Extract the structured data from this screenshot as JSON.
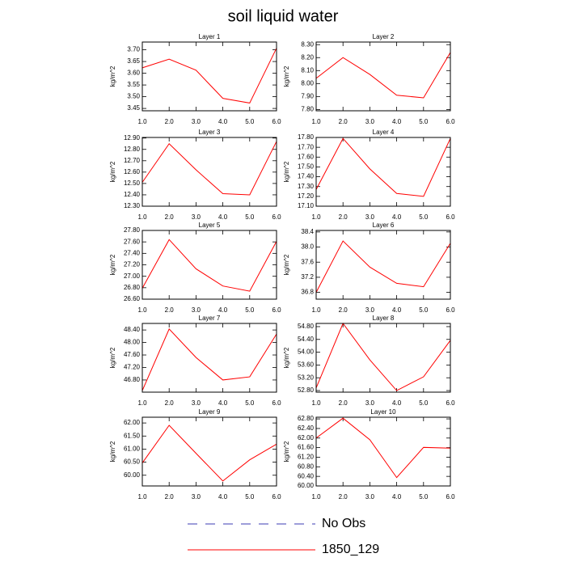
{
  "title": "soil liquid water",
  "legend": [
    {
      "name": "No Obs",
      "color": "#3b3bb3",
      "dash": true
    },
    {
      "name": "1850_129",
      "color": "#ff0000",
      "dash": false
    }
  ],
  "chart_data": [
    {
      "type": "line",
      "title": "Layer 1",
      "ylabel": "kg/m^2",
      "x": [
        1,
        2,
        3,
        4,
        5,
        6
      ],
      "series": [
        {
          "color": "#ff0000",
          "values": [
            3.623,
            3.66,
            3.613,
            3.493,
            3.473,
            3.707
          ]
        }
      ],
      "xlim": [
        1,
        6
      ],
      "xticks": [
        {
          "value": 1,
          "label": "1.0"
        },
        {
          "value": 2,
          "label": "2.0"
        },
        {
          "value": 3,
          "label": "3.0"
        },
        {
          "value": 4,
          "label": "4.0"
        },
        {
          "value": 5,
          "label": "5.0"
        },
        {
          "value": 6,
          "label": "6.0"
        }
      ],
      "ylim": [
        3.44,
        3.733
      ],
      "yticks": [
        {
          "value": 3.45,
          "label": "3.45"
        },
        {
          "value": 3.5,
          "label": "3.50"
        },
        {
          "value": 3.55,
          "label": "3.55"
        },
        {
          "value": 3.6,
          "label": "3.60"
        },
        {
          "value": 3.65,
          "label": "3.65"
        },
        {
          "value": 3.7,
          "label": "3.70"
        }
      ]
    },
    {
      "type": "line",
      "title": "Layer 2",
      "ylabel": "kg/m^2",
      "x": [
        1,
        2,
        3,
        4,
        5,
        6
      ],
      "series": [
        {
          "color": "#ff0000",
          "values": [
            8.04,
            8.2,
            8.07,
            7.91,
            7.89,
            8.24
          ]
        }
      ],
      "xlim": [
        1,
        6
      ],
      "xticks": [
        {
          "value": 1,
          "label": "1.0"
        },
        {
          "value": 2,
          "label": "2.0"
        },
        {
          "value": 3,
          "label": "3.0"
        },
        {
          "value": 4,
          "label": "4.0"
        },
        {
          "value": 5,
          "label": "5.0"
        },
        {
          "value": 6,
          "label": "6.0"
        }
      ],
      "ylim": [
        7.79,
        8.32
      ],
      "yticks": [
        {
          "value": 7.8,
          "label": "7.80"
        },
        {
          "value": 7.9,
          "label": "7.90"
        },
        {
          "value": 8.0,
          "label": "8.00"
        },
        {
          "value": 8.1,
          "label": "8.10"
        },
        {
          "value": 8.2,
          "label": "8.20"
        },
        {
          "value": 8.3,
          "label": "8.30"
        }
      ]
    },
    {
      "type": "line",
      "title": "Layer 3",
      "ylabel": "kg/m^2",
      "x": [
        1,
        2,
        3,
        4,
        5,
        6
      ],
      "series": [
        {
          "color": "#ff0000",
          "values": [
            12.51,
            12.85,
            12.62,
            12.41,
            12.4,
            12.87
          ]
        }
      ],
      "xlim": [
        1,
        6
      ],
      "xticks": [
        {
          "value": 1,
          "label": "1.0"
        },
        {
          "value": 2,
          "label": "2.0"
        },
        {
          "value": 3,
          "label": "3.0"
        },
        {
          "value": 4,
          "label": "4.0"
        },
        {
          "value": 5,
          "label": "5.0"
        },
        {
          "value": 6,
          "label": "6.0"
        }
      ],
      "ylim": [
        12.3,
        12.905
      ],
      "yticks": [
        {
          "value": 12.3,
          "label": "12.30"
        },
        {
          "value": 12.4,
          "label": "12.40"
        },
        {
          "value": 12.5,
          "label": "12.50"
        },
        {
          "value": 12.6,
          "label": "12.60"
        },
        {
          "value": 12.7,
          "label": "12.70"
        },
        {
          "value": 12.8,
          "label": "12.80"
        },
        {
          "value": 12.9,
          "label": "12.90"
        }
      ]
    },
    {
      "type": "line",
      "title": "Layer 4",
      "ylabel": "kg/m^2",
      "x": [
        1,
        2,
        3,
        4,
        5,
        6
      ],
      "series": [
        {
          "color": "#ff0000",
          "values": [
            17.27,
            17.79,
            17.48,
            17.23,
            17.2,
            17.79
          ]
        }
      ],
      "xlim": [
        1,
        6
      ],
      "xticks": [
        {
          "value": 1,
          "label": "1.0"
        },
        {
          "value": 2,
          "label": "2.0"
        },
        {
          "value": 3,
          "label": "3.0"
        },
        {
          "value": 4,
          "label": "4.0"
        },
        {
          "value": 5,
          "label": "5.0"
        },
        {
          "value": 6,
          "label": "6.0"
        }
      ],
      "ylim": [
        17.1,
        17.8
      ],
      "yticks": [
        {
          "value": 17.1,
          "label": "17.10"
        },
        {
          "value": 17.2,
          "label": "17.20"
        },
        {
          "value": 17.3,
          "label": "17.30"
        },
        {
          "value": 17.4,
          "label": "17.40"
        },
        {
          "value": 17.5,
          "label": "17.50"
        },
        {
          "value": 17.6,
          "label": "17.60"
        },
        {
          "value": 17.7,
          "label": "17.70"
        },
        {
          "value": 17.8,
          "label": "17.80"
        }
      ]
    },
    {
      "type": "line",
      "title": "Layer 5",
      "ylabel": "kg/m^2",
      "x": [
        1,
        2,
        3,
        4,
        5,
        6
      ],
      "series": [
        {
          "color": "#ff0000",
          "values": [
            26.79,
            27.64,
            27.13,
            26.83,
            26.74,
            27.61
          ]
        }
      ],
      "xlim": [
        1,
        6
      ],
      "xticks": [
        {
          "value": 1,
          "label": "1.0"
        },
        {
          "value": 2,
          "label": "2.0"
        },
        {
          "value": 3,
          "label": "3.0"
        },
        {
          "value": 4,
          "label": "4.0"
        },
        {
          "value": 5,
          "label": "5.0"
        },
        {
          "value": 6,
          "label": "6.0"
        }
      ],
      "ylim": [
        26.6,
        27.8
      ],
      "yticks": [
        {
          "value": 26.6,
          "label": "26.60"
        },
        {
          "value": 26.8,
          "label": "26.80"
        },
        {
          "value": 27.0,
          "label": "27.00"
        },
        {
          "value": 27.2,
          "label": "27.20"
        },
        {
          "value": 27.4,
          "label": "27.40"
        },
        {
          "value": 27.6,
          "label": "27.60"
        },
        {
          "value": 27.8,
          "label": "27.80"
        }
      ]
    },
    {
      "type": "line",
      "title": "Layer 6",
      "ylabel": "kg/m^2",
      "x": [
        1,
        2,
        3,
        4,
        5,
        6
      ],
      "series": [
        {
          "color": "#ff0000",
          "values": [
            36.8,
            38.16,
            37.47,
            37.04,
            36.95,
            38.1
          ]
        }
      ],
      "xlim": [
        1,
        6
      ],
      "xticks": [
        {
          "value": 1,
          "label": "1.0"
        },
        {
          "value": 2,
          "label": "2.0"
        },
        {
          "value": 3,
          "label": "3.0"
        },
        {
          "value": 4,
          "label": "4.0"
        },
        {
          "value": 5,
          "label": "5.0"
        },
        {
          "value": 6,
          "label": "6.0"
        }
      ],
      "ylim": [
        36.62,
        38.44
      ],
      "yticks": [
        {
          "value": 36.8,
          "label": "36.8"
        },
        {
          "value": 37.2,
          "label": "37.2"
        },
        {
          "value": 37.6,
          "label": "37.6"
        },
        {
          "value": 38.0,
          "label": "38.0"
        },
        {
          "value": 38.4,
          "label": "38.4"
        }
      ]
    },
    {
      "type": "line",
      "title": "Layer 7",
      "ylabel": "kg/m^2",
      "x": [
        1,
        2,
        3,
        4,
        5,
        6
      ],
      "series": [
        {
          "color": "#ff0000",
          "values": [
            46.46,
            48.43,
            47.52,
            46.8,
            46.9,
            48.27
          ]
        }
      ],
      "xlim": [
        1,
        6
      ],
      "xticks": [
        {
          "value": 1,
          "label": "1.0"
        },
        {
          "value": 2,
          "label": "2.0"
        },
        {
          "value": 3,
          "label": "3.0"
        },
        {
          "value": 4,
          "label": "4.0"
        },
        {
          "value": 5,
          "label": "5.0"
        },
        {
          "value": 6,
          "label": "6.0"
        }
      ],
      "ylim": [
        46.41,
        48.61
      ],
      "yticks": [
        {
          "value": 46.8,
          "label": "46.80"
        },
        {
          "value": 47.2,
          "label": "47.20"
        },
        {
          "value": 47.6,
          "label": "47.60"
        },
        {
          "value": 48.0,
          "label": "48.00"
        },
        {
          "value": 48.4,
          "label": "48.40"
        }
      ]
    },
    {
      "type": "line",
      "title": "Layer 8",
      "ylabel": "kg/m^2",
      "x": [
        1,
        2,
        3,
        4,
        5,
        6
      ],
      "series": [
        {
          "color": "#ff0000",
          "values": [
            52.88,
            54.9,
            53.76,
            52.8,
            53.23,
            54.37
          ]
        }
      ],
      "xlim": [
        1,
        6
      ],
      "xticks": [
        {
          "value": 1,
          "label": "1.0"
        },
        {
          "value": 2,
          "label": "2.0"
        },
        {
          "value": 3,
          "label": "3.0"
        },
        {
          "value": 4,
          "label": "4.0"
        },
        {
          "value": 5,
          "label": "5.0"
        },
        {
          "value": 6,
          "label": "6.0"
        }
      ],
      "ylim": [
        52.75,
        54.9
      ],
      "yticks": [
        {
          "value": 52.8,
          "label": "52.80"
        },
        {
          "value": 53.2,
          "label": "53.20"
        },
        {
          "value": 53.6,
          "label": "53.60"
        },
        {
          "value": 54.0,
          "label": "54.00"
        },
        {
          "value": 54.4,
          "label": "54.40"
        },
        {
          "value": 54.8,
          "label": "54.80"
        }
      ]
    },
    {
      "type": "line",
      "title": "Layer 9",
      "ylabel": "kg/m^2",
      "x": [
        1,
        2,
        3,
        4,
        5,
        6
      ],
      "series": [
        {
          "color": "#ff0000",
          "values": [
            60.47,
            61.91,
            60.84,
            59.78,
            60.59,
            61.19
          ]
        }
      ],
      "xlim": [
        1,
        6
      ],
      "xticks": [
        {
          "value": 1,
          "label": "1.0"
        },
        {
          "value": 2,
          "label": "2.0"
        },
        {
          "value": 3,
          "label": "3.0"
        },
        {
          "value": 4,
          "label": "4.0"
        },
        {
          "value": 5,
          "label": "5.0"
        },
        {
          "value": 6,
          "label": "6.0"
        }
      ],
      "ylim": [
        59.59,
        62.22
      ],
      "yticks": [
        {
          "value": 60,
          "label": "60.00"
        },
        {
          "value": 60.5,
          "label": "60.50"
        },
        {
          "value": 61,
          "label": "61.00"
        },
        {
          "value": 61.5,
          "label": "61.50"
        },
        {
          "value": 62,
          "label": "62.00"
        }
      ]
    },
    {
      "type": "line",
      "title": "Layer 10",
      "ylabel": "kg/m^2",
      "x": [
        1,
        2,
        3,
        4,
        5,
        6
      ],
      "series": [
        {
          "color": "#ff0000",
          "values": [
            62.0,
            62.83,
            61.93,
            60.35,
            61.61,
            61.58
          ]
        }
      ],
      "xlim": [
        1,
        6
      ],
      "xticks": [
        {
          "value": 1,
          "label": "1.0"
        },
        {
          "value": 2,
          "label": "2.0"
        },
        {
          "value": 3,
          "label": "3.0"
        },
        {
          "value": 4,
          "label": "4.0"
        },
        {
          "value": 5,
          "label": "5.0"
        },
        {
          "value": 6,
          "label": "6.0"
        }
      ],
      "ylim": [
        60.0,
        62.87
      ],
      "yticks": [
        {
          "value": 60,
          "label": "60.00"
        },
        {
          "value": 60.4,
          "label": "60.40"
        },
        {
          "value": 60.8,
          "label": "60.80"
        },
        {
          "value": 61.2,
          "label": "61.20"
        },
        {
          "value": 61.6,
          "label": "61.60"
        },
        {
          "value": 62,
          "label": "62.00"
        },
        {
          "value": 62.4,
          "label": "62.40"
        },
        {
          "value": 62.8,
          "label": "62.80"
        }
      ]
    }
  ]
}
